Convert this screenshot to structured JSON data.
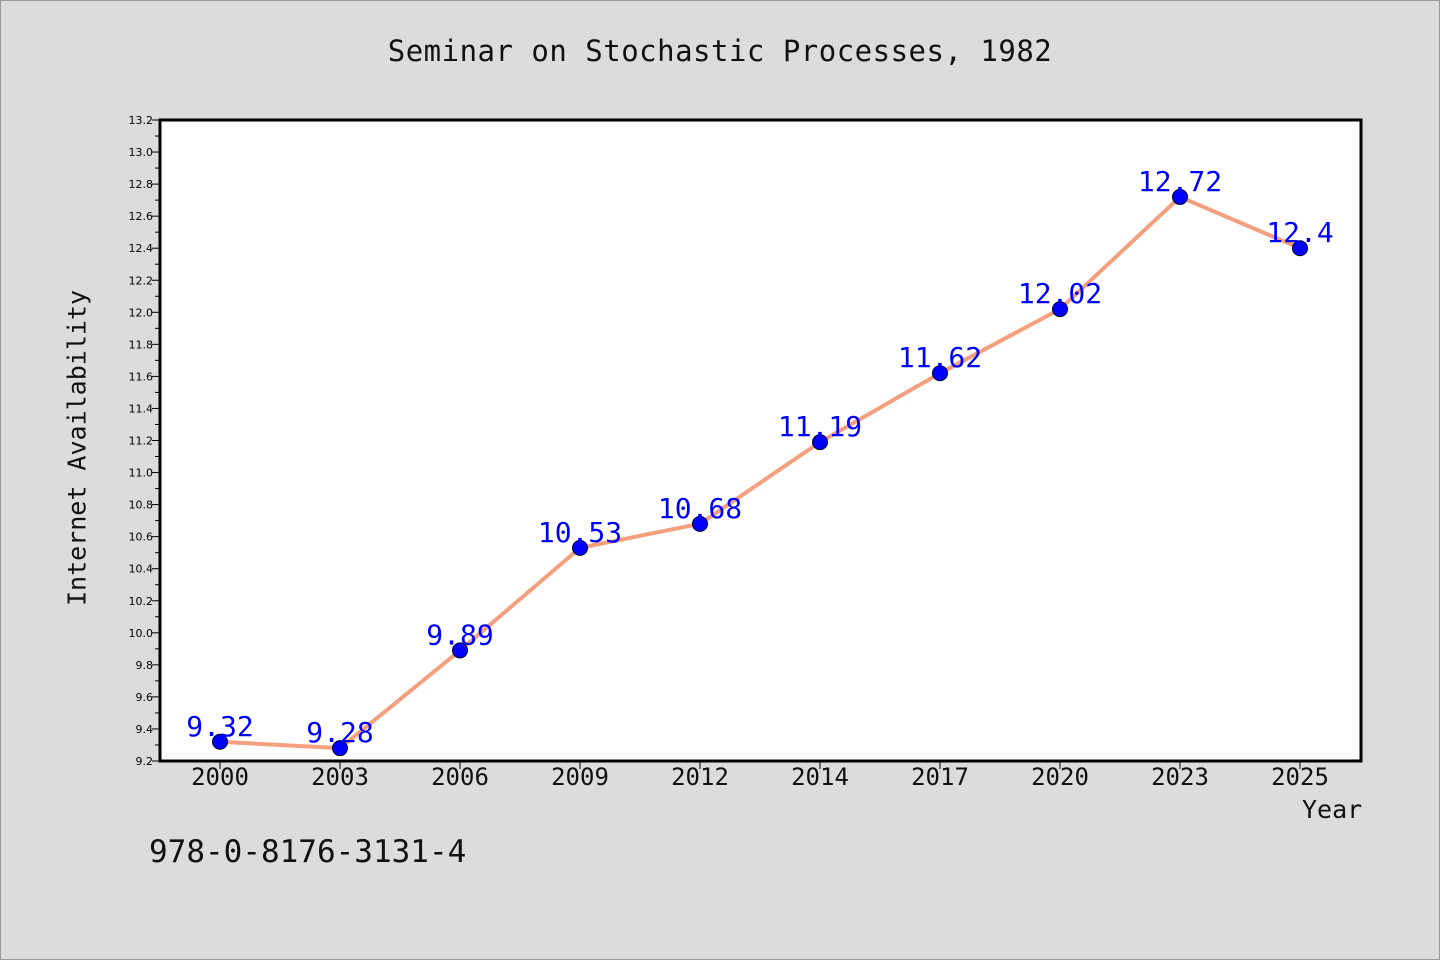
{
  "chart_data": {
    "type": "line",
    "title": "Seminar on Stochastic Processes, 1982",
    "xlabel": "Year",
    "ylabel": "Internet Availability",
    "categories": [
      "2000",
      "2003",
      "2006",
      "2009",
      "2012",
      "2014",
      "2017",
      "2020",
      "2023",
      "2025"
    ],
    "values": [
      9.32,
      9.28,
      9.89,
      10.53,
      10.68,
      11.19,
      11.62,
      12.02,
      12.72,
      12.4
    ],
    "data_labels": [
      "9.32",
      "9.28",
      "9.89",
      "10.53",
      "10.68",
      "11.19",
      "11.62",
      "12.02",
      "12.72",
      "12.4"
    ],
    "ylim": [
      9.2,
      13.2
    ],
    "yticks": [
      "9.2",
      "9.4",
      "9.6",
      "9.8",
      "10.0",
      "10.2",
      "10.4",
      "10.6",
      "10.8",
      "11.0",
      "11.2",
      "11.4",
      "11.6",
      "11.8",
      "12.0",
      "12.2",
      "12.4",
      "12.6",
      "12.8",
      "13.0",
      "13.2"
    ],
    "grid": false,
    "legend": "none",
    "line_color": "#f4a07e",
    "marker_color": "#0000ff",
    "label_color": "#0000ff"
  },
  "footer": {
    "isbn": "978-0-8176-3131-4"
  }
}
